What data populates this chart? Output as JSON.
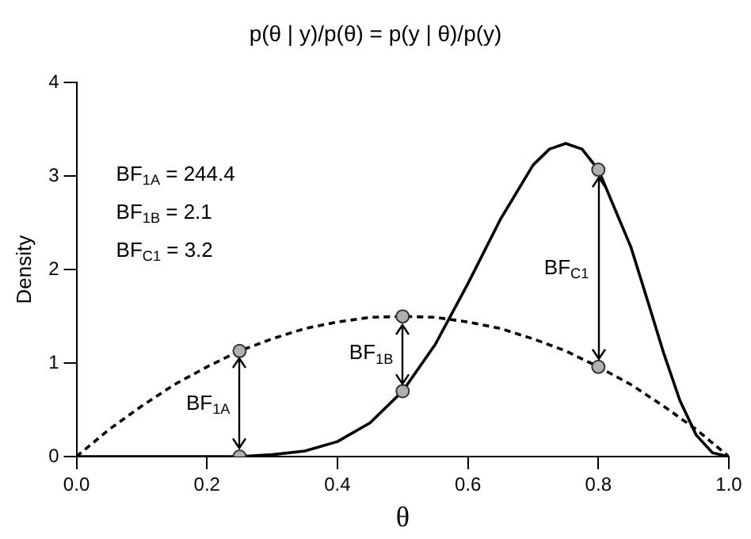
{
  "chart_data": {
    "type": "line",
    "title": "p(θ | y)/p(θ) = p(y | θ)/p(y)",
    "xlabel": "θ",
    "ylabel": "Density",
    "xlim": [
      0,
      1
    ],
    "xticks": [
      {
        "value": 0,
        "label": "0.0"
      },
      {
        "value": 0.2,
        "label": "0.2"
      },
      {
        "value": 0.4,
        "label": "0.4"
      },
      {
        "value": 0.6,
        "label": "0.6"
      },
      {
        "value": 0.8,
        "label": "0.8"
      },
      {
        "value": 1,
        "label": "1.0"
      }
    ],
    "ylim": [
      0,
      4
    ],
    "yticks": [
      0,
      1,
      2,
      3,
      4
    ],
    "grid": false,
    "legend": false,
    "marker": "none",
    "series": [
      {
        "type": "line",
        "color": "#000000",
        "line_style": "solid",
        "x": [
          0,
          0.05,
          0.1,
          0.15,
          0.2,
          0.25,
          0.3,
          0.35,
          0.4,
          0.45,
          0.5,
          0.55,
          0.6,
          0.65,
          0.7,
          0.725,
          0.75,
          0.775,
          0.8,
          0.85,
          0.875,
          0.9,
          0.925,
          0.95,
          0.975,
          1
        ],
        "values": [
          0,
          0,
          0,
          0,
          0,
          0,
          0.02,
          0.06,
          0.16,
          0.36,
          0.7,
          1.2,
          1.85,
          2.54,
          3.12,
          3.29,
          3.35,
          3.29,
          3.07,
          2.24,
          1.68,
          1.11,
          0.6,
          0.23,
          0.04,
          0
        ]
      },
      {
        "type": "line",
        "color": "#000000",
        "line_style": "dashed",
        "x": [
          0,
          0.05,
          0.1,
          0.15,
          0.2,
          0.25,
          0.3,
          0.35,
          0.4,
          0.45,
          0.5,
          0.55,
          0.6,
          0.65,
          0.7,
          0.75,
          0.8,
          0.85,
          0.9,
          0.95,
          1
        ],
        "values": [
          0,
          0.29,
          0.54,
          0.77,
          0.96,
          1.13,
          1.26,
          1.37,
          1.44,
          1.49,
          1.5,
          1.49,
          1.44,
          1.37,
          1.26,
          1.13,
          0.96,
          0.77,
          0.54,
          0.29,
          0
        ]
      },
      {
        "type": "scatter",
        "color": "#b0b0b0",
        "marker": "circle",
        "x": [
          0.25,
          0.25,
          0.5,
          0.5,
          0.8,
          0.8
        ],
        "values": [
          1.13,
          0,
          1.5,
          0.7,
          0.96,
          3.07
        ]
      }
    ],
    "annotations": [
      "BF$_{1A}$ = 244.4",
      "BF$_{1B}$ = 2.1",
      "BF$_{C1}$ = 3.2",
      "BF$_{1A}$",
      "BF$_{1B}$",
      "BF$_{C1}$"
    ]
  }
}
